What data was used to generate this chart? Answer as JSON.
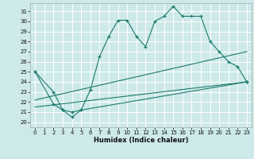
{
  "xlabel": "Humidex (Indice chaleur)",
  "background_color": "#cee9e9",
  "grid_color": "#ffffff",
  "line_color": "#1a7a6e",
  "x_ticks": [
    0,
    1,
    2,
    3,
    4,
    5,
    6,
    7,
    8,
    9,
    10,
    11,
    12,
    13,
    14,
    15,
    16,
    17,
    18,
    19,
    20,
    21,
    22,
    23
  ],
  "y_ticks": [
    20,
    21,
    22,
    23,
    24,
    25,
    26,
    27,
    28,
    29,
    30,
    31
  ],
  "xlim": [
    -0.5,
    23.5
  ],
  "ylim": [
    19.5,
    31.8
  ],
  "series1_x": [
    0,
    2,
    3,
    4,
    5,
    6,
    7,
    8,
    9,
    10,
    11,
    12,
    13,
    14,
    15,
    16,
    17,
    18,
    19,
    20,
    21,
    22,
    23
  ],
  "series1_y": [
    25.0,
    23.0,
    21.2,
    21.0,
    21.2,
    23.2,
    26.5,
    28.5,
    30.1,
    30.1,
    28.5,
    27.5,
    30.0,
    30.5,
    31.5,
    30.5,
    30.5,
    30.5,
    28.0,
    27.0,
    26.0,
    25.5,
    24.0
  ],
  "series2_x": [
    0,
    2,
    3,
    4,
    5,
    23
  ],
  "series2_y": [
    25.0,
    21.8,
    21.2,
    20.5,
    21.2,
    24.0
  ],
  "series3_x": [
    0,
    23
  ],
  "series3_y": [
    21.5,
    24.0
  ],
  "series4_x": [
    0,
    23
  ],
  "series4_y": [
    22.2,
    27.0
  ]
}
